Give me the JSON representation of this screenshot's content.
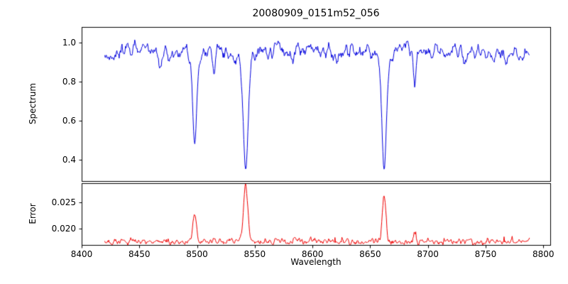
{
  "chart_data": {
    "type": "line",
    "title": "20080909_0151m52_056",
    "xlabel": "Wavelength",
    "xlim": [
      8400,
      8806
    ],
    "xticks": [
      8400,
      8450,
      8500,
      8550,
      8600,
      8650,
      8700,
      8750,
      8800
    ],
    "x_start": 8420,
    "x_end": 8788,
    "n_points": 737,
    "seed": 20080909,
    "grid": false,
    "legend": "none",
    "panels": [
      {
        "name": "spectrum",
        "ylabel": "Spectrum",
        "color": "#0000dd",
        "ylim": [
          0.29,
          1.08
        ],
        "ytick_values": [
          0.4,
          0.6,
          0.8,
          1.0
        ],
        "ytick_labels": [
          "0.4",
          "0.6",
          "0.8",
          "1.0"
        ],
        "continuum": 0.952,
        "noise_sigma": 0.022,
        "absorption_lines": [
          {
            "center": 8498.0,
            "depth": 0.44,
            "width": 1.6
          },
          {
            "center": 8498.0,
            "depth": 0.05,
            "width": 4.0
          },
          {
            "center": 8542.1,
            "depth": 0.52,
            "width": 2.0
          },
          {
            "center": 8542.1,
            "depth": 0.09,
            "width": 5.5
          },
          {
            "center": 8662.1,
            "depth": 0.53,
            "width": 1.8
          },
          {
            "center": 8662.1,
            "depth": 0.08,
            "width": 5.0
          },
          {
            "center": 8514.8,
            "depth": 0.15,
            "width": 1.1
          },
          {
            "center": 8688.6,
            "depth": 0.22,
            "width": 1.2
          },
          {
            "center": 8468.0,
            "depth": 0.07,
            "width": 1.0
          },
          {
            "center": 8583.0,
            "depth": 0.09,
            "width": 1.0
          },
          {
            "center": 8621.0,
            "depth": 0.07,
            "width": 0.9
          }
        ]
      },
      {
        "name": "error",
        "ylabel": "Error",
        "color": "#ee0000",
        "ylim": [
          0.0168,
          0.0287
        ],
        "ytick_values": [
          0.02,
          0.025
        ],
        "ytick_labels": [
          "0.020",
          "0.025"
        ],
        "baseline": 0.01745,
        "noise_sigma": 0.0003,
        "peaks": [
          {
            "center": 8498.0,
            "height": 0.0053,
            "width": 1.5
          },
          {
            "center": 8542.1,
            "height": 0.0099,
            "width": 1.8
          },
          {
            "center": 8542.1,
            "height": 0.0008,
            "width": 4.0
          },
          {
            "center": 8662.1,
            "height": 0.0093,
            "width": 1.5
          },
          {
            "center": 8688.6,
            "height": 0.0015,
            "width": 1.1
          },
          {
            "center": 8514.8,
            "height": 0.0009,
            "width": 1.0
          }
        ]
      }
    ]
  }
}
